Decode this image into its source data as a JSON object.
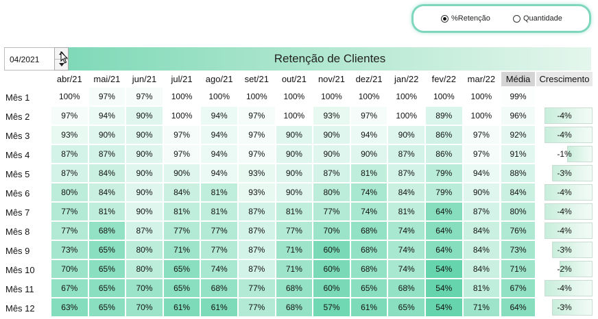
{
  "radio": {
    "options": [
      {
        "label": "%Retenção",
        "selected": true
      },
      {
        "label": "Quantidade",
        "selected": false
      }
    ]
  },
  "date_value": "04/2021",
  "title": "Retenção de Clientes",
  "columns": [
    "abr/21",
    "mai/21",
    "jun/21",
    "jul/21",
    "ago/21",
    "set/21",
    "out/21",
    "nov/21",
    "dez/21",
    "jan/22",
    "fev/22",
    "mar/22"
  ],
  "media_label": "Média",
  "growth_label": "Crescimento",
  "rows": [
    {
      "label": "Mês 1",
      "values": [
        100,
        97,
        97,
        100,
        100,
        100,
        100,
        100,
        100,
        100,
        100,
        100
      ],
      "media": 99,
      "growth": ""
    },
    {
      "label": "Mês 2",
      "values": [
        97,
        94,
        90,
        100,
        94,
        97,
        100,
        93,
        97,
        100,
        89,
        100
      ],
      "media": 96,
      "growth": -4
    },
    {
      "label": "Mês 3",
      "values": [
        93,
        90,
        90,
        97,
        94,
        97,
        90,
        90,
        94,
        90,
        86,
        97
      ],
      "media": 92,
      "growth": -4
    },
    {
      "label": "Mês 4",
      "values": [
        87,
        87,
        90,
        97,
        94,
        97,
        90,
        90,
        90,
        87,
        86,
        97
      ],
      "media": 91,
      "growth": -1
    },
    {
      "label": "Mês 5",
      "values": [
        87,
        84,
        90,
        90,
        94,
        93,
        90,
        87,
        81,
        87,
        79,
        94
      ],
      "media": 88,
      "growth": -3
    },
    {
      "label": "Mês 6",
      "values": [
        80,
        84,
        90,
        84,
        81,
        93,
        90,
        80,
        74,
        84,
        79,
        90
      ],
      "media": 84,
      "growth": -4
    },
    {
      "label": "Mês 7",
      "values": [
        77,
        81,
        90,
        81,
        81,
        87,
        81,
        77,
        74,
        81,
        64,
        87
      ],
      "media": 80,
      "growth": -4
    },
    {
      "label": "Mês 8",
      "values": [
        77,
        68,
        87,
        77,
        77,
        87,
        77,
        70,
        68,
        74,
        64,
        84
      ],
      "media": 76,
      "growth": -4
    },
    {
      "label": "Mês 9",
      "values": [
        73,
        65,
        80,
        71,
        77,
        87,
        71,
        60,
        68,
        74,
        64,
        84
      ],
      "media": 73,
      "growth": -3
    },
    {
      "label": "Mês 10",
      "values": [
        70,
        65,
        80,
        65,
        74,
        87,
        71,
        60,
        68,
        74,
        54,
        84
      ],
      "media": 71,
      "growth": -2
    },
    {
      "label": "Mês 11",
      "values": [
        67,
        65,
        70,
        65,
        68,
        77,
        68,
        60,
        65,
        68,
        54,
        81
      ],
      "media": 67,
      "growth": -4
    },
    {
      "label": "Mês 12",
      "values": [
        63,
        65,
        70,
        61,
        61,
        77,
        68,
        57,
        61,
        65,
        54,
        71
      ],
      "media": 64,
      "growth": -3
    }
  ],
  "colors": {
    "heat_low": "#5fd3a9",
    "heat_high": "#ffffff",
    "title_gradient_start": "#7fd9b8",
    "radio_border": "#7ed6bd"
  }
}
